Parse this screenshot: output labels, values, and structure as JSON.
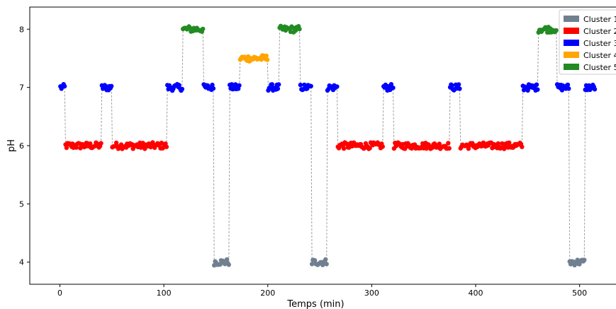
{
  "chart_data": {
    "type": "scatter",
    "title": "",
    "xlabel": "Temps (min)",
    "ylabel": "pH",
    "xlim": [
      -29,
      535
    ],
    "ylim": [
      3.62,
      8.38
    ],
    "xticks": [
      0,
      100,
      200,
      300,
      400,
      500
    ],
    "yticks": [
      4,
      5,
      6,
      7,
      8
    ],
    "grid": false,
    "legend_position": "top-right",
    "connector_line": {
      "style": "dashed",
      "color": "#9e9e9e"
    },
    "segments": [
      {
        "cluster": 3,
        "x_start": 0,
        "x_end": 5,
        "y": 7.0
      },
      {
        "cluster": 2,
        "x_start": 5,
        "x_end": 40,
        "y": 6.0
      },
      {
        "cluster": 3,
        "x_start": 40,
        "x_end": 50,
        "y": 7.0
      },
      {
        "cluster": 2,
        "x_start": 50,
        "x_end": 103,
        "y": 6.0
      },
      {
        "cluster": 3,
        "x_start": 103,
        "x_end": 118,
        "y": 7.0
      },
      {
        "cluster": 5,
        "x_start": 118,
        "x_end": 138,
        "y": 8.0
      },
      {
        "cluster": 3,
        "x_start": 138,
        "x_end": 148,
        "y": 7.0
      },
      {
        "cluster": 1,
        "x_start": 148,
        "x_end": 163,
        "y": 4.0
      },
      {
        "cluster": 3,
        "x_start": 163,
        "x_end": 173,
        "y": 7.0
      },
      {
        "cluster": 4,
        "x_start": 173,
        "x_end": 200,
        "y": 7.5
      },
      {
        "cluster": 3,
        "x_start": 200,
        "x_end": 211,
        "y": 7.0
      },
      {
        "cluster": 5,
        "x_start": 211,
        "x_end": 231,
        "y": 8.0
      },
      {
        "cluster": 3,
        "x_start": 231,
        "x_end": 242,
        "y": 7.0
      },
      {
        "cluster": 1,
        "x_start": 242,
        "x_end": 257,
        "y": 4.0
      },
      {
        "cluster": 3,
        "x_start": 257,
        "x_end": 267,
        "y": 7.0
      },
      {
        "cluster": 2,
        "x_start": 267,
        "x_end": 311,
        "y": 6.0
      },
      {
        "cluster": 3,
        "x_start": 311,
        "x_end": 321,
        "y": 7.0
      },
      {
        "cluster": 2,
        "x_start": 321,
        "x_end": 375,
        "y": 6.0
      },
      {
        "cluster": 3,
        "x_start": 375,
        "x_end": 385,
        "y": 7.0
      },
      {
        "cluster": 2,
        "x_start": 385,
        "x_end": 445,
        "y": 6.0
      },
      {
        "cluster": 3,
        "x_start": 445,
        "x_end": 460,
        "y": 7.0
      },
      {
        "cluster": 5,
        "x_start": 460,
        "x_end": 478,
        "y": 8.0
      },
      {
        "cluster": 3,
        "x_start": 478,
        "x_end": 490,
        "y": 7.0
      },
      {
        "cluster": 1,
        "x_start": 490,
        "x_end": 505,
        "y": 4.0
      },
      {
        "cluster": 3,
        "x_start": 505,
        "x_end": 515,
        "y": 7.0
      }
    ],
    "series": [
      {
        "name": "Cluster 1",
        "color": "#708090"
      },
      {
        "name": "Cluster 2",
        "color": "#ff0000"
      },
      {
        "name": "Cluster 3",
        "color": "#0000ff"
      },
      {
        "name": "Cluster 4",
        "color": "#ffa500"
      },
      {
        "name": "Cluster 5",
        "color": "#228b22"
      }
    ]
  }
}
